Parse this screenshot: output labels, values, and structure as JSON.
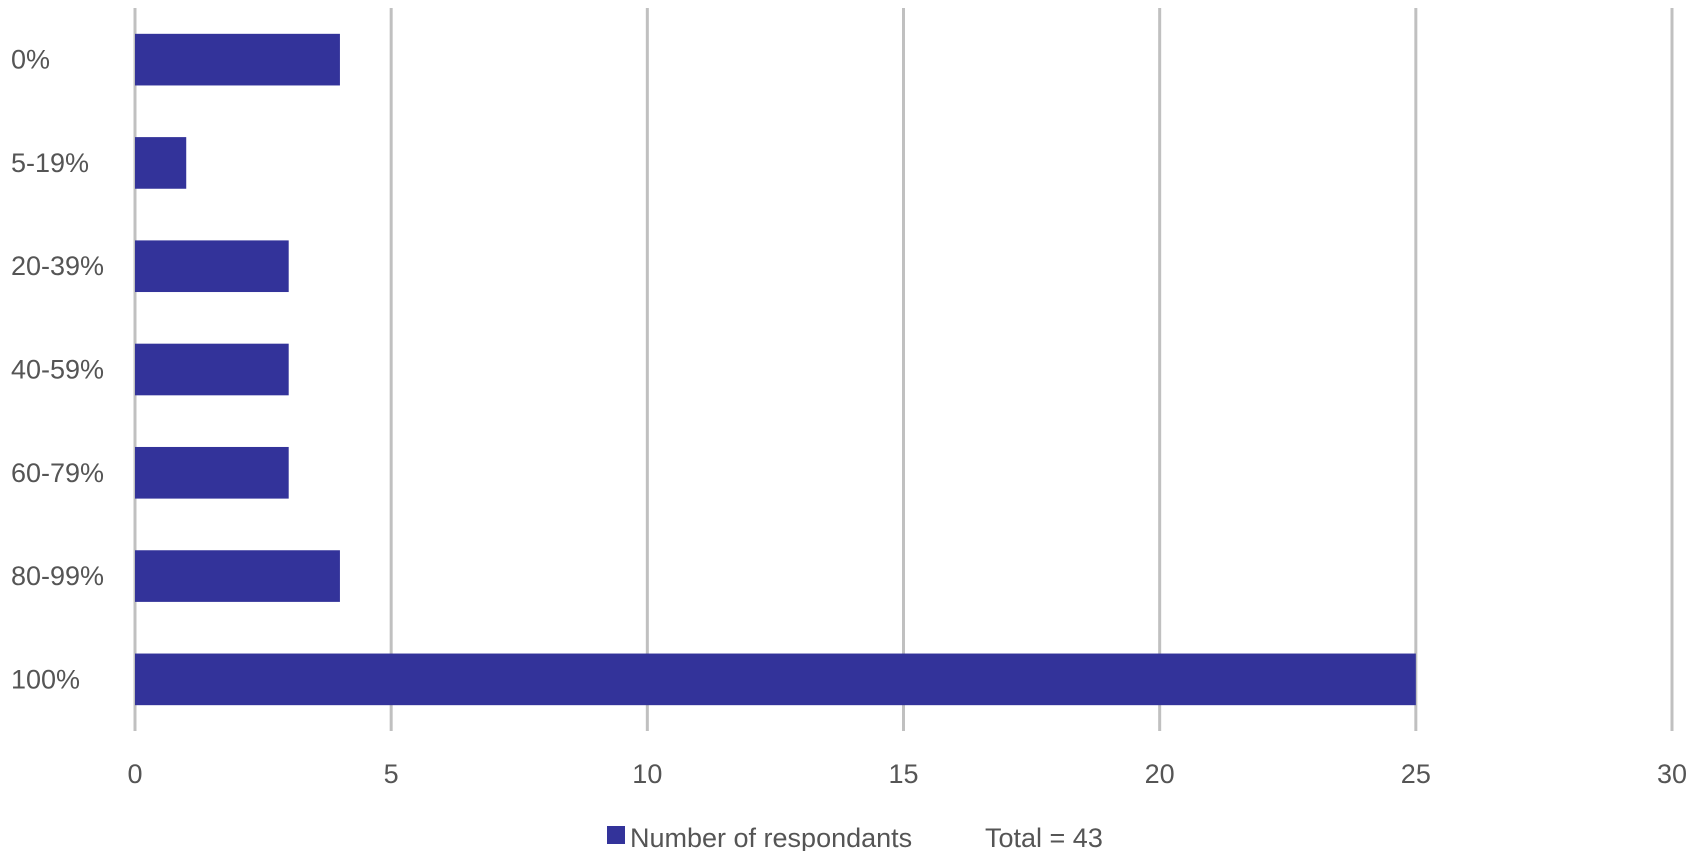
{
  "chart_data": {
    "type": "bar",
    "orientation": "horizontal",
    "categories": [
      "0%",
      "5-19%",
      "20-39%",
      "40-59%",
      "60-79%",
      "80-99%",
      "100%"
    ],
    "series": [
      {
        "name": "Number of respondants",
        "values": [
          4,
          1,
          3,
          3,
          3,
          4,
          25
        ],
        "color": "#33339a"
      }
    ],
    "xlim": [
      0,
      30
    ],
    "x_ticks": [
      "0",
      "5",
      "10",
      "15",
      "20",
      "25",
      "30"
    ],
    "grid": true,
    "legend_position": "bottom",
    "legend": {
      "label": "Number of respondants",
      "extra_text": "Total = 43"
    }
  }
}
